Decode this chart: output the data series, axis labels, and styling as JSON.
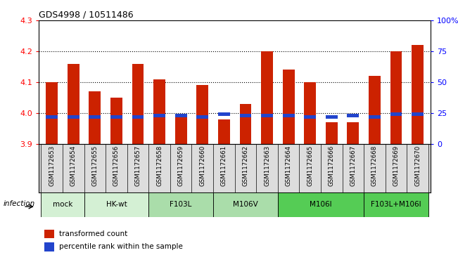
{
  "title": "GDS4998 / 10511486",
  "samples": [
    "GSM1172653",
    "GSM1172654",
    "GSM1172655",
    "GSM1172656",
    "GSM1172657",
    "GSM1172658",
    "GSM1172659",
    "GSM1172660",
    "GSM1172661",
    "GSM1172662",
    "GSM1172663",
    "GSM1172664",
    "GSM1172665",
    "GSM1172666",
    "GSM1172667",
    "GSM1172668",
    "GSM1172669",
    "GSM1172670"
  ],
  "transformed_counts": [
    4.1,
    4.16,
    4.07,
    4.05,
    4.16,
    4.11,
    3.99,
    4.09,
    3.98,
    4.03,
    4.2,
    4.14,
    4.1,
    3.97,
    3.97,
    4.12,
    4.2,
    4.22
  ],
  "percentile_ranks": [
    22,
    22,
    22,
    22,
    22,
    23,
    23,
    22,
    24,
    23,
    23,
    23,
    22,
    22,
    23,
    22,
    24,
    24
  ],
  "groups": [
    {
      "label": "mock",
      "start": 0,
      "end": 2,
      "color": "#d4f0d4"
    },
    {
      "label": "HK-wt",
      "start": 2,
      "end": 5,
      "color": "#d4f0d4"
    },
    {
      "label": "F103L",
      "start": 5,
      "end": 8,
      "color": "#aaddaa"
    },
    {
      "label": "M106V",
      "start": 8,
      "end": 11,
      "color": "#aaddaa"
    },
    {
      "label": "M106I",
      "start": 11,
      "end": 15,
      "color": "#55cc55"
    },
    {
      "label": "F103L+M106I",
      "start": 15,
      "end": 18,
      "color": "#55cc55"
    }
  ],
  "ylim_left": [
    3.9,
    4.3
  ],
  "ylim_right": [
    0,
    100
  ],
  "yticks_left": [
    3.9,
    4.0,
    4.1,
    4.2,
    4.3
  ],
  "yticks_right": [
    0,
    25,
    50,
    75,
    100
  ],
  "ytick_labels_right": [
    "0",
    "25",
    "50",
    "75",
    "100%"
  ],
  "bar_color": "#cc2200",
  "blue_color": "#2244cc",
  "bar_bottom": 3.9,
  "bar_width": 0.55
}
